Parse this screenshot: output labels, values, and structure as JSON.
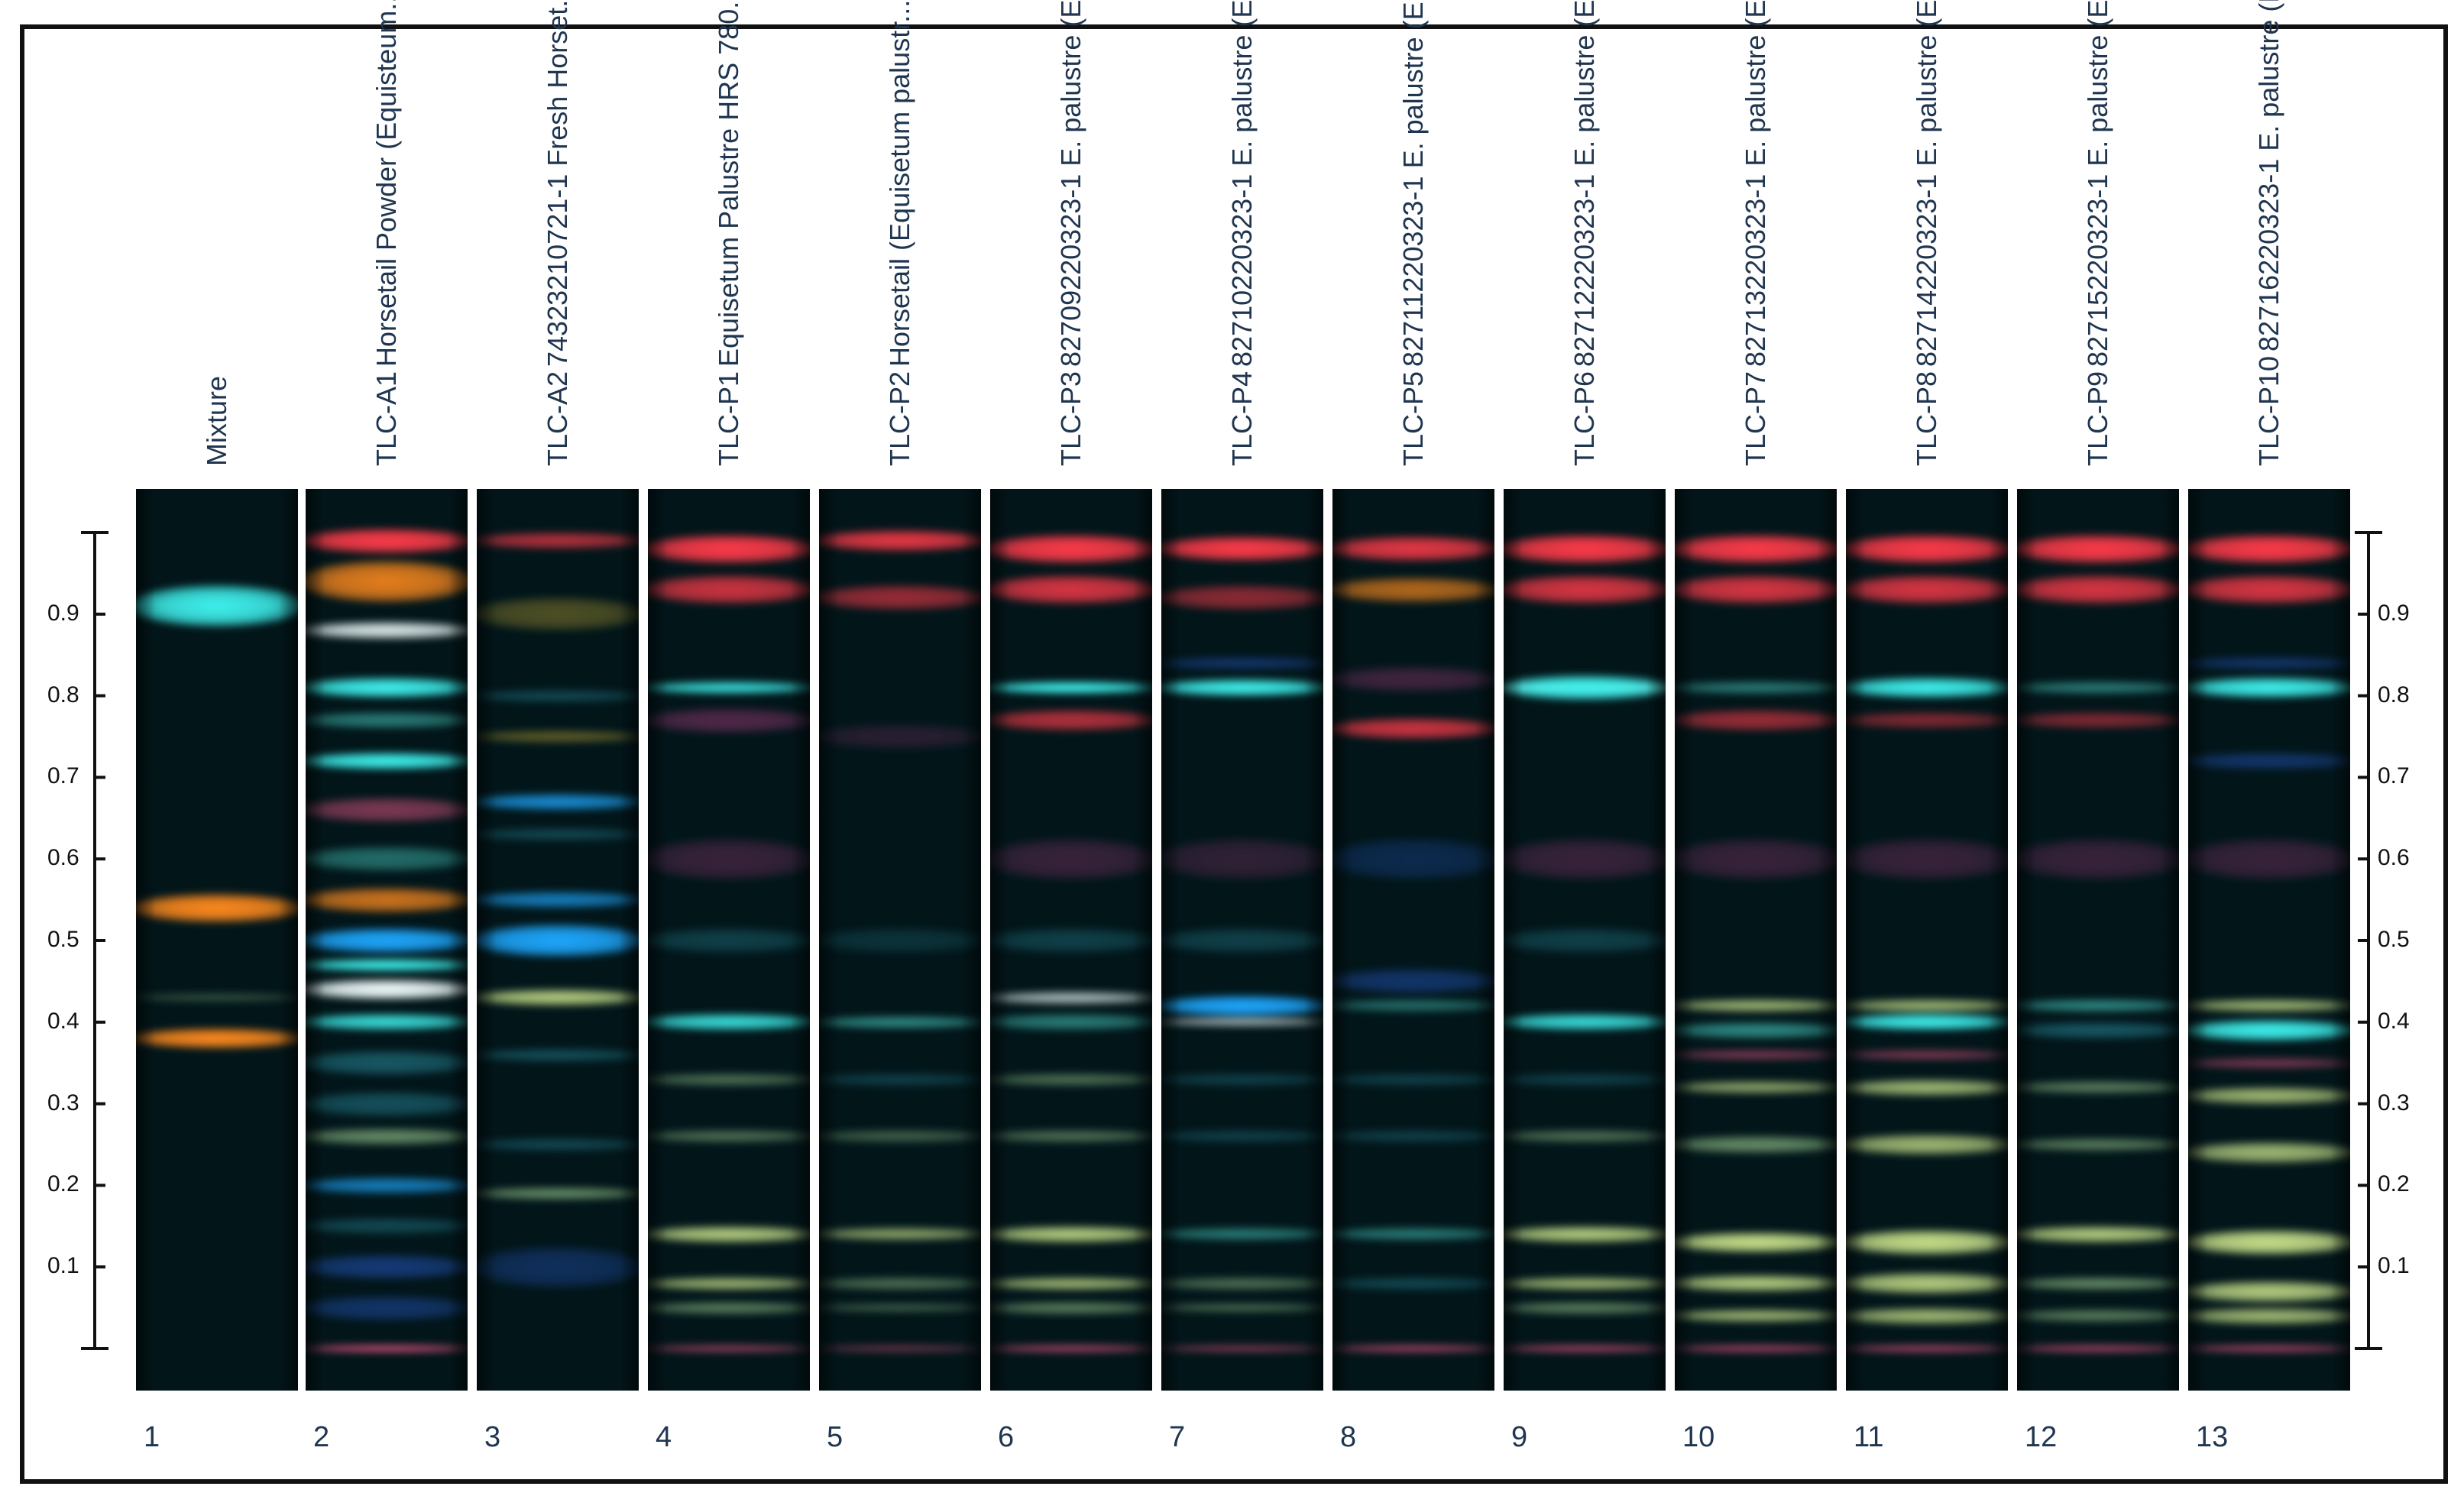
{
  "tracks": [
    {
      "number": "1",
      "lines": [
        "Mixture"
      ]
    },
    {
      "number": "2",
      "lines": [
        "TLC-A1",
        "Horsetail Powder (Equisteum..."
      ]
    },
    {
      "number": "3",
      "lines": [
        "TLC-A2",
        "74323210721-1 Fresh Horset..."
      ]
    },
    {
      "number": "4",
      "lines": [
        "TLC-P1",
        "Equisetum Palustre HRS 780..."
      ]
    },
    {
      "number": "5",
      "lines": [
        "TLC-P2",
        "Horsetail (Equisetum palustr..."
      ]
    },
    {
      "number": "6",
      "lines": [
        "TLC-P3",
        "82709220323-1 E. palustre (E..."
      ]
    },
    {
      "number": "7",
      "lines": [
        "TLC-P4",
        "82710220323-1 E. palustre (E..."
      ]
    },
    {
      "number": "8",
      "lines": [
        "TLC-P5",
        "82711220323-1 E. palustre (E..."
      ]
    },
    {
      "number": "9",
      "lines": [
        "TLC-P6",
        "82712220323-1 E. palustre (E..."
      ]
    },
    {
      "number": "10",
      "lines": [
        "TLC-P7",
        "82713220323-1 E. palustre (E..."
      ]
    },
    {
      "number": "11",
      "lines": [
        "TLC-P8",
        "82714220323-1 E. palustre (E..."
      ]
    },
    {
      "number": "12",
      "lines": [
        "TLC-P9",
        "82715220323-1 E. palustre (E..."
      ]
    },
    {
      "number": "13",
      "lines": [
        "TLC-P10",
        "82716220323-1 E. palustre (E..."
      ]
    }
  ],
  "rf_scale": {
    "ticks": [
      0.1,
      0.2,
      0.3,
      0.4,
      0.5,
      0.6,
      0.7,
      0.8,
      0.9
    ],
    "labels": [
      "0.1",
      "0.2",
      "0.3",
      "0.4",
      "0.5",
      "0.6",
      "0.7",
      "0.8",
      "0.9"
    ],
    "range": [
      0,
      1
    ]
  },
  "colors": {
    "red": "#ff3b4a",
    "pink": "#d0507a",
    "orange": "#ff8a1e",
    "cyan": "#3ff2ee",
    "blue": "#1ea8ff",
    "white": "#f4ffff",
    "yellowgreen": "#c8e08a",
    "green": "#7faa7a",
    "teal": "#3aa8a0",
    "darkteal": "#1e6a78",
    "navy": "#1e4aa0",
    "olive": "#9a8a30",
    "magenta": "#a03a7a"
  },
  "bands": [
    [
      {
        "rf": 0.91,
        "c": "cyan",
        "w": 0.05,
        "o": 1.0
      },
      {
        "rf": 0.54,
        "c": "orange",
        "w": 0.035,
        "o": 1.0
      },
      {
        "rf": 0.38,
        "c": "orange",
        "w": 0.025,
        "o": 1.0
      },
      {
        "rf": 0.43,
        "c": "green",
        "w": 0.01,
        "o": 0.4
      }
    ],
    [
      {
        "rf": 0.99,
        "c": "red",
        "w": 0.03,
        "o": 1.0
      },
      {
        "rf": 0.94,
        "c": "orange",
        "w": 0.05,
        "o": 0.9
      },
      {
        "rf": 0.88,
        "c": "white",
        "w": 0.02,
        "o": 0.9
      },
      {
        "rf": 0.81,
        "c": "cyan",
        "w": 0.025,
        "o": 1.0
      },
      {
        "rf": 0.77,
        "c": "teal",
        "w": 0.02,
        "o": 0.7
      },
      {
        "rf": 0.72,
        "c": "cyan",
        "w": 0.02,
        "o": 1.0
      },
      {
        "rf": 0.66,
        "c": "pink",
        "w": 0.03,
        "o": 0.6
      },
      {
        "rf": 0.6,
        "c": "teal",
        "w": 0.03,
        "o": 0.6
      },
      {
        "rf": 0.55,
        "c": "orange",
        "w": 0.03,
        "o": 0.8
      },
      {
        "rf": 0.5,
        "c": "blue",
        "w": 0.03,
        "o": 1.0
      },
      {
        "rf": 0.47,
        "c": "cyan",
        "w": 0.015,
        "o": 1.0
      },
      {
        "rf": 0.44,
        "c": "white",
        "w": 0.025,
        "o": 1.0
      },
      {
        "rf": 0.4,
        "c": "cyan",
        "w": 0.02,
        "o": 0.9
      },
      {
        "rf": 0.35,
        "c": "darkteal",
        "w": 0.03,
        "o": 0.8
      },
      {
        "rf": 0.3,
        "c": "darkteal",
        "w": 0.03,
        "o": 0.7
      },
      {
        "rf": 0.26,
        "c": "green",
        "w": 0.02,
        "o": 0.8
      },
      {
        "rf": 0.2,
        "c": "blue",
        "w": 0.02,
        "o": 0.7
      },
      {
        "rf": 0.15,
        "c": "darkteal",
        "w": 0.02,
        "o": 0.6
      },
      {
        "rf": 0.1,
        "c": "navy",
        "w": 0.03,
        "o": 0.7
      },
      {
        "rf": 0.05,
        "c": "navy",
        "w": 0.03,
        "o": 0.6
      },
      {
        "rf": 0.0,
        "c": "pink",
        "w": 0.01,
        "o": 1.0
      }
    ],
    [
      {
        "rf": 0.99,
        "c": "red",
        "w": 0.02,
        "o": 0.7
      },
      {
        "rf": 0.9,
        "c": "olive",
        "w": 0.04,
        "o": 0.5
      },
      {
        "rf": 0.8,
        "c": "darkteal",
        "w": 0.015,
        "o": 0.6
      },
      {
        "rf": 0.75,
        "c": "olive",
        "w": 0.015,
        "o": 0.6
      },
      {
        "rf": 0.67,
        "c": "blue",
        "w": 0.02,
        "o": 0.8
      },
      {
        "rf": 0.63,
        "c": "darkteal",
        "w": 0.015,
        "o": 0.6
      },
      {
        "rf": 0.55,
        "c": "blue",
        "w": 0.02,
        "o": 0.7
      },
      {
        "rf": 0.5,
        "c": "blue",
        "w": 0.04,
        "o": 1.0
      },
      {
        "rf": 0.43,
        "c": "yellowgreen",
        "w": 0.02,
        "o": 0.9
      },
      {
        "rf": 0.36,
        "c": "darkteal",
        "w": 0.015,
        "o": 0.7
      },
      {
        "rf": 0.25,
        "c": "darkteal",
        "w": 0.015,
        "o": 0.6
      },
      {
        "rf": 0.19,
        "c": "green",
        "w": 0.015,
        "o": 0.8
      },
      {
        "rf": 0.1,
        "c": "navy",
        "w": 0.05,
        "o": 0.5
      }
    ],
    [
      {
        "rf": 0.98,
        "c": "red",
        "w": 0.035,
        "o": 1.0
      },
      {
        "rf": 0.93,
        "c": "red",
        "w": 0.035,
        "o": 0.8
      },
      {
        "rf": 0.81,
        "c": "cyan",
        "w": 0.015,
        "o": 0.9
      },
      {
        "rf": 0.77,
        "c": "magenta",
        "w": 0.03,
        "o": 0.5
      },
      {
        "rf": 0.6,
        "c": "magenta",
        "w": 0.05,
        "o": 0.35
      },
      {
        "rf": 0.5,
        "c": "darkteal",
        "w": 0.03,
        "o": 0.5
      },
      {
        "rf": 0.4,
        "c": "cyan",
        "w": 0.02,
        "o": 0.9
      },
      {
        "rf": 0.33,
        "c": "green",
        "w": 0.015,
        "o": 0.6
      },
      {
        "rf": 0.26,
        "c": "green",
        "w": 0.015,
        "o": 0.6
      },
      {
        "rf": 0.14,
        "c": "yellowgreen",
        "w": 0.02,
        "o": 0.9
      },
      {
        "rf": 0.08,
        "c": "yellowgreen",
        "w": 0.015,
        "o": 0.8
      },
      {
        "rf": 0.05,
        "c": "green",
        "w": 0.015,
        "o": 0.7
      },
      {
        "rf": 0.0,
        "c": "pink",
        "w": 0.01,
        "o": 0.7
      }
    ],
    [
      {
        "rf": 0.99,
        "c": "red",
        "w": 0.025,
        "o": 0.9
      },
      {
        "rf": 0.92,
        "c": "red",
        "w": 0.03,
        "o": 0.6
      },
      {
        "rf": 0.75,
        "c": "magenta",
        "w": 0.03,
        "o": 0.25
      },
      {
        "rf": 0.5,
        "c": "darkteal",
        "w": 0.03,
        "o": 0.35
      },
      {
        "rf": 0.4,
        "c": "teal",
        "w": 0.015,
        "o": 0.8
      },
      {
        "rf": 0.33,
        "c": "darkteal",
        "w": 0.015,
        "o": 0.5
      },
      {
        "rf": 0.26,
        "c": "green",
        "w": 0.015,
        "o": 0.5
      },
      {
        "rf": 0.14,
        "c": "yellowgreen",
        "w": 0.015,
        "o": 0.7
      },
      {
        "rf": 0.08,
        "c": "green",
        "w": 0.015,
        "o": 0.6
      },
      {
        "rf": 0.05,
        "c": "green",
        "w": 0.01,
        "o": 0.5
      },
      {
        "rf": 0.0,
        "c": "pink",
        "w": 0.008,
        "o": 0.5
      }
    ],
    [
      {
        "rf": 0.98,
        "c": "red",
        "w": 0.035,
        "o": 1.0
      },
      {
        "rf": 0.93,
        "c": "red",
        "w": 0.035,
        "o": 0.85
      },
      {
        "rf": 0.81,
        "c": "cyan",
        "w": 0.015,
        "o": 1.0
      },
      {
        "rf": 0.77,
        "c": "red",
        "w": 0.025,
        "o": 0.7
      },
      {
        "rf": 0.6,
        "c": "magenta",
        "w": 0.05,
        "o": 0.35
      },
      {
        "rf": 0.5,
        "c": "darkteal",
        "w": 0.03,
        "o": 0.5
      },
      {
        "rf": 0.43,
        "c": "white",
        "w": 0.015,
        "o": 0.7
      },
      {
        "rf": 0.4,
        "c": "teal",
        "w": 0.02,
        "o": 0.7
      },
      {
        "rf": 0.33,
        "c": "green",
        "w": 0.015,
        "o": 0.6
      },
      {
        "rf": 0.26,
        "c": "green",
        "w": 0.015,
        "o": 0.6
      },
      {
        "rf": 0.14,
        "c": "yellowgreen",
        "w": 0.02,
        "o": 0.9
      },
      {
        "rf": 0.08,
        "c": "yellowgreen",
        "w": 0.015,
        "o": 0.8
      },
      {
        "rf": 0.05,
        "c": "green",
        "w": 0.015,
        "o": 0.7
      },
      {
        "rf": 0.0,
        "c": "pink",
        "w": 0.01,
        "o": 0.8
      }
    ],
    [
      {
        "rf": 0.98,
        "c": "red",
        "w": 0.03,
        "o": 1.0
      },
      {
        "rf": 0.92,
        "c": "red",
        "w": 0.03,
        "o": 0.55
      },
      {
        "rf": 0.84,
        "c": "navy",
        "w": 0.015,
        "o": 0.6
      },
      {
        "rf": 0.81,
        "c": "cyan",
        "w": 0.02,
        "o": 1.0
      },
      {
        "rf": 0.6,
        "c": "magenta",
        "w": 0.05,
        "o": 0.3
      },
      {
        "rf": 0.5,
        "c": "darkteal",
        "w": 0.03,
        "o": 0.5
      },
      {
        "rf": 0.42,
        "c": "blue",
        "w": 0.025,
        "o": 1.0
      },
      {
        "rf": 0.4,
        "c": "white",
        "w": 0.01,
        "o": 0.7
      },
      {
        "rf": 0.33,
        "c": "darkteal",
        "w": 0.015,
        "o": 0.5
      },
      {
        "rf": 0.26,
        "c": "darkteal",
        "w": 0.015,
        "o": 0.5
      },
      {
        "rf": 0.14,
        "c": "teal",
        "w": 0.015,
        "o": 0.7
      },
      {
        "rf": 0.08,
        "c": "green",
        "w": 0.015,
        "o": 0.6
      },
      {
        "rf": 0.05,
        "c": "green",
        "w": 0.01,
        "o": 0.6
      },
      {
        "rf": 0.0,
        "c": "pink",
        "w": 0.008,
        "o": 0.6
      }
    ],
    [
      {
        "rf": 0.98,
        "c": "red",
        "w": 0.03,
        "o": 0.9
      },
      {
        "rf": 0.93,
        "c": "orange",
        "w": 0.03,
        "o": 0.7
      },
      {
        "rf": 0.82,
        "c": "magenta",
        "w": 0.03,
        "o": 0.4
      },
      {
        "rf": 0.76,
        "c": "red",
        "w": 0.025,
        "o": 0.8
      },
      {
        "rf": 0.6,
        "c": "navy",
        "w": 0.05,
        "o": 0.4
      },
      {
        "rf": 0.45,
        "c": "navy",
        "w": 0.03,
        "o": 0.6
      },
      {
        "rf": 0.42,
        "c": "teal",
        "w": 0.015,
        "o": 0.6
      },
      {
        "rf": 0.33,
        "c": "darkteal",
        "w": 0.015,
        "o": 0.5
      },
      {
        "rf": 0.26,
        "c": "darkteal",
        "w": 0.015,
        "o": 0.5
      },
      {
        "rf": 0.14,
        "c": "teal",
        "w": 0.015,
        "o": 0.7
      },
      {
        "rf": 0.08,
        "c": "darkteal",
        "w": 0.015,
        "o": 0.6
      },
      {
        "rf": 0.0,
        "c": "pink",
        "w": 0.008,
        "o": 0.8
      }
    ],
    [
      {
        "rf": 0.98,
        "c": "red",
        "w": 0.035,
        "o": 1.0
      },
      {
        "rf": 0.93,
        "c": "red",
        "w": 0.035,
        "o": 0.85
      },
      {
        "rf": 0.81,
        "c": "white",
        "w": 0.012,
        "o": 1.0
      },
      {
        "rf": 0.81,
        "c": "cyan",
        "w": 0.03,
        "o": 1.0
      },
      {
        "rf": 0.6,
        "c": "magenta",
        "w": 0.05,
        "o": 0.35
      },
      {
        "rf": 0.5,
        "c": "darkteal",
        "w": 0.03,
        "o": 0.5
      },
      {
        "rf": 0.4,
        "c": "cyan",
        "w": 0.02,
        "o": 0.9
      },
      {
        "rf": 0.33,
        "c": "darkteal",
        "w": 0.015,
        "o": 0.5
      },
      {
        "rf": 0.26,
        "c": "green",
        "w": 0.015,
        "o": 0.6
      },
      {
        "rf": 0.14,
        "c": "yellowgreen",
        "w": 0.02,
        "o": 0.9
      },
      {
        "rf": 0.08,
        "c": "yellowgreen",
        "w": 0.015,
        "o": 0.8
      },
      {
        "rf": 0.05,
        "c": "green",
        "w": 0.015,
        "o": 0.7
      },
      {
        "rf": 0.0,
        "c": "pink",
        "w": 0.01,
        "o": 0.8
      }
    ],
    [
      {
        "rf": 0.98,
        "c": "red",
        "w": 0.035,
        "o": 1.0
      },
      {
        "rf": 0.93,
        "c": "red",
        "w": 0.035,
        "o": 0.85
      },
      {
        "rf": 0.81,
        "c": "teal",
        "w": 0.015,
        "o": 0.7
      },
      {
        "rf": 0.77,
        "c": "red",
        "w": 0.025,
        "o": 0.6
      },
      {
        "rf": 0.6,
        "c": "magenta",
        "w": 0.05,
        "o": 0.35
      },
      {
        "rf": 0.42,
        "c": "yellowgreen",
        "w": 0.015,
        "o": 0.8
      },
      {
        "rf": 0.39,
        "c": "teal",
        "w": 0.02,
        "o": 0.8
      },
      {
        "rf": 0.36,
        "c": "pink",
        "w": 0.012,
        "o": 0.6
      },
      {
        "rf": 0.32,
        "c": "yellowgreen",
        "w": 0.015,
        "o": 0.7
      },
      {
        "rf": 0.25,
        "c": "green",
        "w": 0.02,
        "o": 0.8
      },
      {
        "rf": 0.13,
        "c": "yellowgreen",
        "w": 0.025,
        "o": 1.0
      },
      {
        "rf": 0.08,
        "c": "yellowgreen",
        "w": 0.02,
        "o": 0.9
      },
      {
        "rf": 0.04,
        "c": "yellowgreen",
        "w": 0.015,
        "o": 0.8
      },
      {
        "rf": 0.0,
        "c": "pink",
        "w": 0.01,
        "o": 0.8
      }
    ],
    [
      {
        "rf": 0.98,
        "c": "red",
        "w": 0.035,
        "o": 1.0
      },
      {
        "rf": 0.93,
        "c": "red",
        "w": 0.035,
        "o": 0.85
      },
      {
        "rf": 0.81,
        "c": "cyan",
        "w": 0.025,
        "o": 1.0
      },
      {
        "rf": 0.77,
        "c": "red",
        "w": 0.02,
        "o": 0.5
      },
      {
        "rf": 0.6,
        "c": "magenta",
        "w": 0.05,
        "o": 0.35
      },
      {
        "rf": 0.42,
        "c": "yellowgreen",
        "w": 0.015,
        "o": 0.8
      },
      {
        "rf": 0.4,
        "c": "cyan",
        "w": 0.02,
        "o": 1.0
      },
      {
        "rf": 0.36,
        "c": "pink",
        "w": 0.012,
        "o": 0.6
      },
      {
        "rf": 0.32,
        "c": "yellowgreen",
        "w": 0.02,
        "o": 0.8
      },
      {
        "rf": 0.25,
        "c": "yellowgreen",
        "w": 0.025,
        "o": 0.8
      },
      {
        "rf": 0.13,
        "c": "yellowgreen",
        "w": 0.03,
        "o": 1.0
      },
      {
        "rf": 0.08,
        "c": "yellowgreen",
        "w": 0.025,
        "o": 0.9
      },
      {
        "rf": 0.04,
        "c": "yellowgreen",
        "w": 0.02,
        "o": 0.8
      },
      {
        "rf": 0.0,
        "c": "pink",
        "w": 0.01,
        "o": 0.8
      }
    ],
    [
      {
        "rf": 0.98,
        "c": "red",
        "w": 0.035,
        "o": 1.0
      },
      {
        "rf": 0.93,
        "c": "red",
        "w": 0.035,
        "o": 0.85
      },
      {
        "rf": 0.81,
        "c": "teal",
        "w": 0.015,
        "o": 0.7
      },
      {
        "rf": 0.77,
        "c": "red",
        "w": 0.02,
        "o": 0.5
      },
      {
        "rf": 0.6,
        "c": "magenta",
        "w": 0.05,
        "o": 0.35
      },
      {
        "rf": 0.42,
        "c": "teal",
        "w": 0.015,
        "o": 0.8
      },
      {
        "rf": 0.39,
        "c": "darkteal",
        "w": 0.02,
        "o": 0.8
      },
      {
        "rf": 0.32,
        "c": "green",
        "w": 0.015,
        "o": 0.7
      },
      {
        "rf": 0.25,
        "c": "green",
        "w": 0.015,
        "o": 0.7
      },
      {
        "rf": 0.14,
        "c": "yellowgreen",
        "w": 0.02,
        "o": 0.9
      },
      {
        "rf": 0.08,
        "c": "green",
        "w": 0.015,
        "o": 0.8
      },
      {
        "rf": 0.04,
        "c": "green",
        "w": 0.015,
        "o": 0.7
      },
      {
        "rf": 0.0,
        "c": "pink",
        "w": 0.01,
        "o": 0.8
      }
    ],
    [
      {
        "rf": 0.98,
        "c": "red",
        "w": 0.035,
        "o": 1.0
      },
      {
        "rf": 0.93,
        "c": "red",
        "w": 0.035,
        "o": 0.85
      },
      {
        "rf": 0.84,
        "c": "navy",
        "w": 0.015,
        "o": 0.6
      },
      {
        "rf": 0.81,
        "c": "cyan",
        "w": 0.025,
        "o": 1.0
      },
      {
        "rf": 0.72,
        "c": "navy",
        "w": 0.02,
        "o": 0.6
      },
      {
        "rf": 0.6,
        "c": "magenta",
        "w": 0.05,
        "o": 0.35
      },
      {
        "rf": 0.42,
        "c": "yellowgreen",
        "w": 0.015,
        "o": 0.8
      },
      {
        "rf": 0.39,
        "c": "cyan",
        "w": 0.025,
        "o": 1.0
      },
      {
        "rf": 0.35,
        "c": "pink",
        "w": 0.012,
        "o": 0.6
      },
      {
        "rf": 0.31,
        "c": "yellowgreen",
        "w": 0.02,
        "o": 0.8
      },
      {
        "rf": 0.24,
        "c": "yellowgreen",
        "w": 0.025,
        "o": 0.8
      },
      {
        "rf": 0.13,
        "c": "yellowgreen",
        "w": 0.03,
        "o": 1.0
      },
      {
        "rf": 0.07,
        "c": "yellowgreen",
        "w": 0.025,
        "o": 0.9
      },
      {
        "rf": 0.04,
        "c": "yellowgreen",
        "w": 0.02,
        "o": 0.8
      },
      {
        "rf": 0.0,
        "c": "pink",
        "w": 0.01,
        "o": 0.8
      }
    ]
  ]
}
